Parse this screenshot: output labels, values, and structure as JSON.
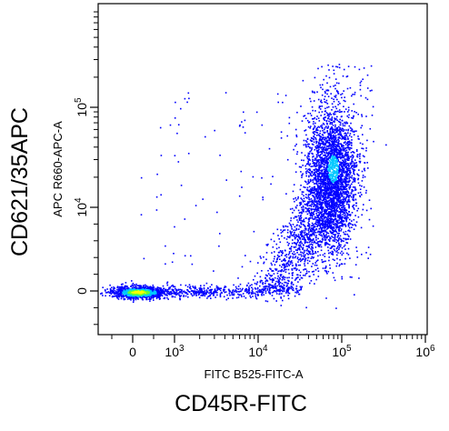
{
  "chart_data": {
    "type": "scatter",
    "outer_ylabel": "CD621/35APC",
    "outer_xlabel": "CD45R-FITC",
    "xlabel": "FITC B525-FITC-A",
    "ylabel": "APC R660-APC-A",
    "x_scale": "biexponential",
    "y_scale": "biexponential",
    "xlim": [
      -1000,
      1000000
    ],
    "ylim": [
      -1000,
      1000000
    ],
    "x_ticks": [
      {
        "value": 0,
        "base": "0",
        "exp": ""
      },
      {
        "value": 1000,
        "base": "10",
        "exp": "3"
      },
      {
        "value": 10000,
        "base": "10",
        "exp": "4"
      },
      {
        "value": 100000,
        "base": "10",
        "exp": "5"
      },
      {
        "value": 1000000,
        "base": "10",
        "exp": "6"
      }
    ],
    "y_ticks": [
      {
        "value": 0,
        "base": "0",
        "exp": ""
      },
      {
        "value": 10000,
        "base": "10",
        "exp": "4"
      },
      {
        "value": 100000,
        "base": "10",
        "exp": "5"
      }
    ],
    "populations": [
      {
        "name": "",
        "description": "dense low-FITC low-APC cluster",
        "x_center": 300,
        "y_center": 0,
        "density": "high"
      },
      {
        "name": "",
        "description": "FITC-high APC-high cluster",
        "x_center": 70000,
        "y_center": 20000,
        "density": "medium"
      }
    ],
    "colors": {
      "low_density": "#0000ff",
      "mid_density": "#00c8ff",
      "high_density": "#66ff33",
      "peak_density": "#ffff00"
    },
    "grid": false,
    "legend": "none"
  }
}
